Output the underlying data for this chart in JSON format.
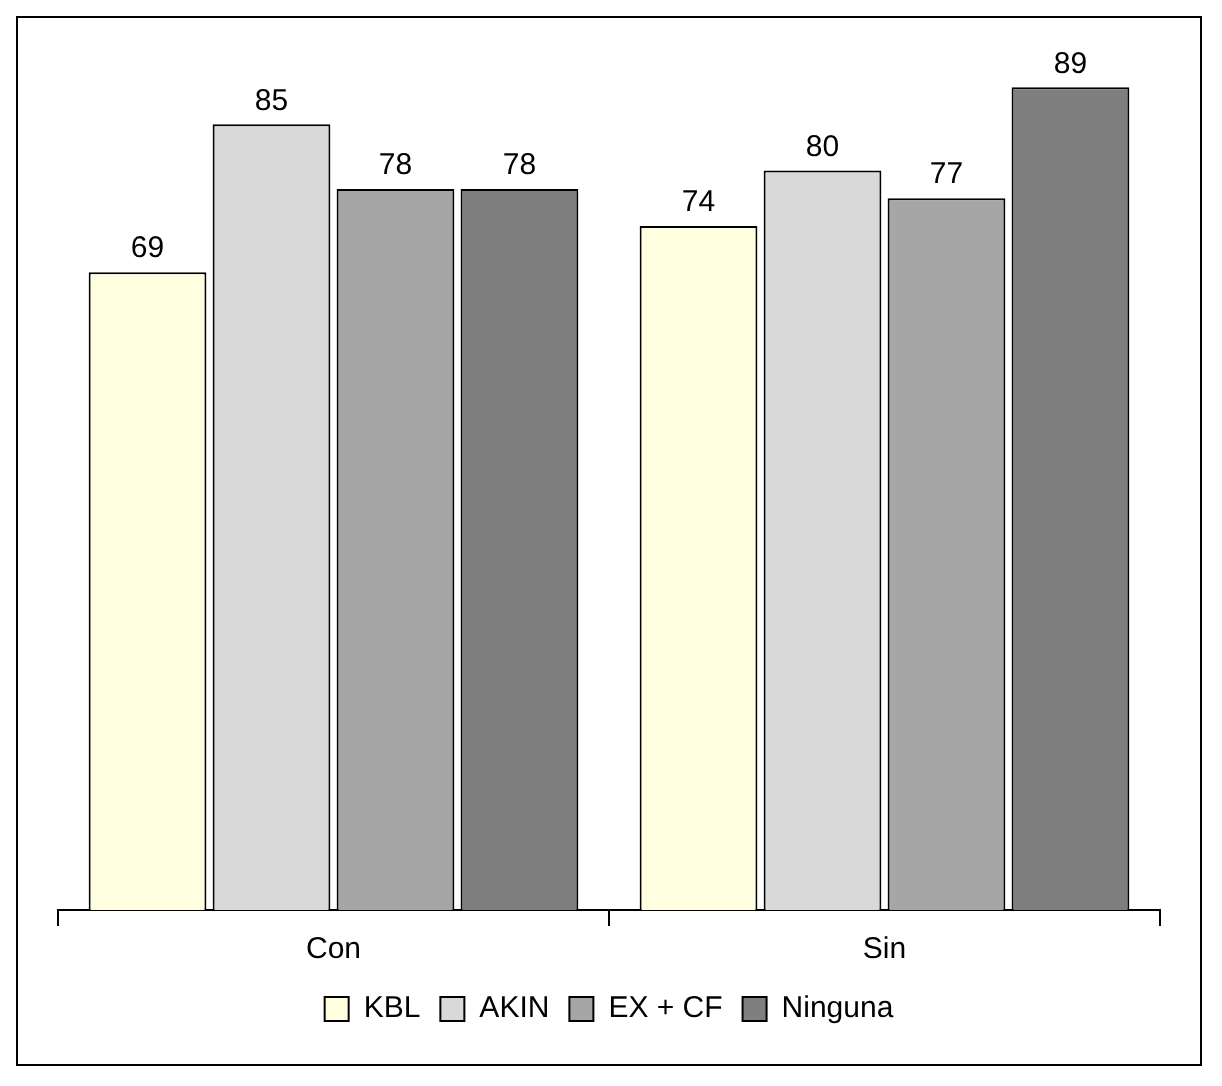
{
  "chart_data": {
    "type": "bar",
    "categories": [
      "Con",
      "Sin"
    ],
    "series": [
      {
        "name": "KBL",
        "color": "#ffffe0",
        "values": [
          69,
          74
        ]
      },
      {
        "name": "AKIN",
        "color": "#d9d9d9",
        "values": [
          85,
          80
        ]
      },
      {
        "name": "EX + CF",
        "color": "#a6a6a6",
        "values": [
          78,
          77
        ]
      },
      {
        "name": "Ninguna",
        "color": "#7f7f7f",
        "values": [
          78,
          89
        ]
      }
    ],
    "data_labels": true,
    "legend": "bottom",
    "grid": false
  }
}
